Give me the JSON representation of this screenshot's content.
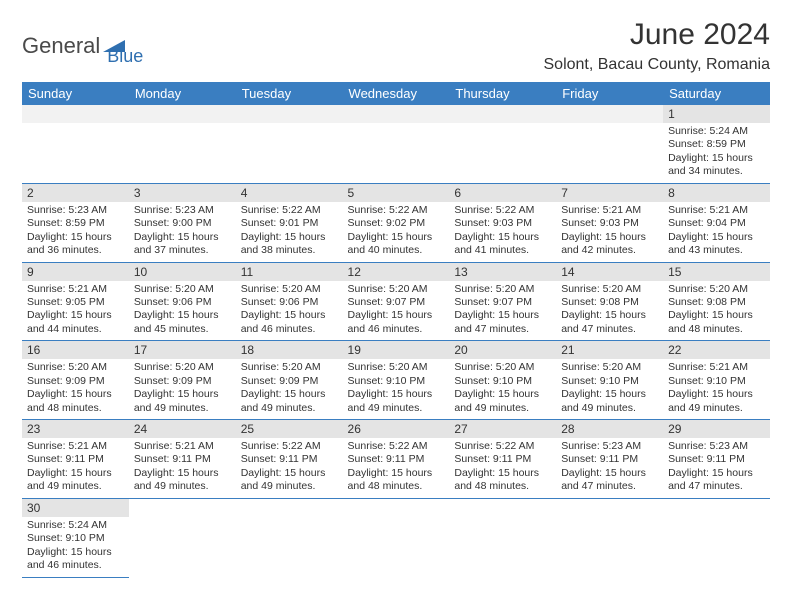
{
  "brand": {
    "part1": "General",
    "part2": "Blue"
  },
  "title": "June 2024",
  "location": "Solont, Bacau County, Romania",
  "colors": {
    "header_bg": "#3a7ec1",
    "header_fg": "#ffffff",
    "daynum_bg": "#e4e4e4",
    "empty_bg": "#f2f2f2",
    "rule": "#3a7ec1",
    "text": "#333333",
    "brand_blue": "#2f6fb0",
    "brand_gray": "#4a4a4a"
  },
  "day_headers": [
    "Sunday",
    "Monday",
    "Tuesday",
    "Wednesday",
    "Thursday",
    "Friday",
    "Saturday"
  ],
  "weeks": [
    [
      {
        "n": "",
        "empty": true
      },
      {
        "n": "",
        "empty": true
      },
      {
        "n": "",
        "empty": true
      },
      {
        "n": "",
        "empty": true
      },
      {
        "n": "",
        "empty": true
      },
      {
        "n": "",
        "empty": true
      },
      {
        "n": "1",
        "sunrise": "5:24 AM",
        "sunset": "8:59 PM",
        "daylight": "15 hours and 34 minutes."
      }
    ],
    [
      {
        "n": "2",
        "sunrise": "5:23 AM",
        "sunset": "8:59 PM",
        "daylight": "15 hours and 36 minutes."
      },
      {
        "n": "3",
        "sunrise": "5:23 AM",
        "sunset": "9:00 PM",
        "daylight": "15 hours and 37 minutes."
      },
      {
        "n": "4",
        "sunrise": "5:22 AM",
        "sunset": "9:01 PM",
        "daylight": "15 hours and 38 minutes."
      },
      {
        "n": "5",
        "sunrise": "5:22 AM",
        "sunset": "9:02 PM",
        "daylight": "15 hours and 40 minutes."
      },
      {
        "n": "6",
        "sunrise": "5:22 AM",
        "sunset": "9:03 PM",
        "daylight": "15 hours and 41 minutes."
      },
      {
        "n": "7",
        "sunrise": "5:21 AM",
        "sunset": "9:03 PM",
        "daylight": "15 hours and 42 minutes."
      },
      {
        "n": "8",
        "sunrise": "5:21 AM",
        "sunset": "9:04 PM",
        "daylight": "15 hours and 43 minutes."
      }
    ],
    [
      {
        "n": "9",
        "sunrise": "5:21 AM",
        "sunset": "9:05 PM",
        "daylight": "15 hours and 44 minutes."
      },
      {
        "n": "10",
        "sunrise": "5:20 AM",
        "sunset": "9:06 PM",
        "daylight": "15 hours and 45 minutes."
      },
      {
        "n": "11",
        "sunrise": "5:20 AM",
        "sunset": "9:06 PM",
        "daylight": "15 hours and 46 minutes."
      },
      {
        "n": "12",
        "sunrise": "5:20 AM",
        "sunset": "9:07 PM",
        "daylight": "15 hours and 46 minutes."
      },
      {
        "n": "13",
        "sunrise": "5:20 AM",
        "sunset": "9:07 PM",
        "daylight": "15 hours and 47 minutes."
      },
      {
        "n": "14",
        "sunrise": "5:20 AM",
        "sunset": "9:08 PM",
        "daylight": "15 hours and 47 minutes."
      },
      {
        "n": "15",
        "sunrise": "5:20 AM",
        "sunset": "9:08 PM",
        "daylight": "15 hours and 48 minutes."
      }
    ],
    [
      {
        "n": "16",
        "sunrise": "5:20 AM",
        "sunset": "9:09 PM",
        "daylight": "15 hours and 48 minutes."
      },
      {
        "n": "17",
        "sunrise": "5:20 AM",
        "sunset": "9:09 PM",
        "daylight": "15 hours and 49 minutes."
      },
      {
        "n": "18",
        "sunrise": "5:20 AM",
        "sunset": "9:09 PM",
        "daylight": "15 hours and 49 minutes."
      },
      {
        "n": "19",
        "sunrise": "5:20 AM",
        "sunset": "9:10 PM",
        "daylight": "15 hours and 49 minutes."
      },
      {
        "n": "20",
        "sunrise": "5:20 AM",
        "sunset": "9:10 PM",
        "daylight": "15 hours and 49 minutes."
      },
      {
        "n": "21",
        "sunrise": "5:20 AM",
        "sunset": "9:10 PM",
        "daylight": "15 hours and 49 minutes."
      },
      {
        "n": "22",
        "sunrise": "5:21 AM",
        "sunset": "9:10 PM",
        "daylight": "15 hours and 49 minutes."
      }
    ],
    [
      {
        "n": "23",
        "sunrise": "5:21 AM",
        "sunset": "9:11 PM",
        "daylight": "15 hours and 49 minutes."
      },
      {
        "n": "24",
        "sunrise": "5:21 AM",
        "sunset": "9:11 PM",
        "daylight": "15 hours and 49 minutes."
      },
      {
        "n": "25",
        "sunrise": "5:22 AM",
        "sunset": "9:11 PM",
        "daylight": "15 hours and 49 minutes."
      },
      {
        "n": "26",
        "sunrise": "5:22 AM",
        "sunset": "9:11 PM",
        "daylight": "15 hours and 48 minutes."
      },
      {
        "n": "27",
        "sunrise": "5:22 AM",
        "sunset": "9:11 PM",
        "daylight": "15 hours and 48 minutes."
      },
      {
        "n": "28",
        "sunrise": "5:23 AM",
        "sunset": "9:11 PM",
        "daylight": "15 hours and 47 minutes."
      },
      {
        "n": "29",
        "sunrise": "5:23 AM",
        "sunset": "9:11 PM",
        "daylight": "15 hours and 47 minutes."
      }
    ],
    [
      {
        "n": "30",
        "sunrise": "5:24 AM",
        "sunset": "9:10 PM",
        "daylight": "15 hours and 46 minutes."
      },
      {
        "n": "",
        "empty": true,
        "noborder": true
      },
      {
        "n": "",
        "empty": true,
        "noborder": true
      },
      {
        "n": "",
        "empty": true,
        "noborder": true
      },
      {
        "n": "",
        "empty": true,
        "noborder": true
      },
      {
        "n": "",
        "empty": true,
        "noborder": true
      },
      {
        "n": "",
        "empty": true,
        "noborder": true
      }
    ]
  ],
  "labels": {
    "sunrise": "Sunrise:",
    "sunset": "Sunset:",
    "daylight": "Daylight:"
  }
}
